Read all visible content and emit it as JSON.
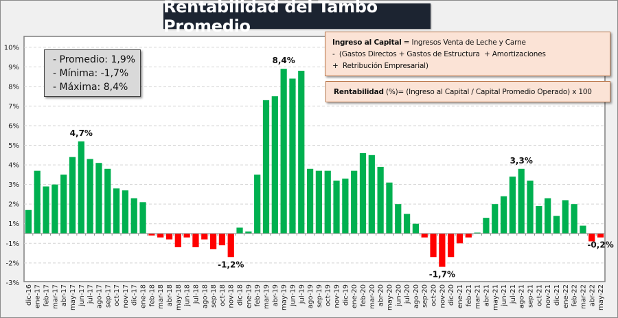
{
  "chart_data": {
    "type": "bar",
    "title": "Rentabilidad del Tambo Promedio",
    "xlabel": "",
    "ylabel": "",
    "ylim": [
      -3,
      10
    ],
    "grid": true,
    "y_tick_labels": [
      "10%",
      "9%",
      "8%",
      "7%",
      "6%",
      "5%",
      "4%",
      "3%",
      "2%",
      "1%",
      "-1%",
      "-2%",
      "-3%"
    ],
    "colors": {
      "positive": "#00b050",
      "negative": "#ff0000"
    },
    "categories": [
      "dic-16",
      "ene-17",
      "feb-17",
      "mar-17",
      "abr-17",
      "may-17",
      "jun-17",
      "jul-17",
      "ago-17",
      "sep-17",
      "oct-17",
      "nov-17",
      "dic-17",
      "ene-18",
      "feb-18",
      "mar-18",
      "abr-18",
      "may-18",
      "jun-18",
      "jul-18",
      "ago-18",
      "sep-18",
      "oct-18",
      "nov-18",
      "dic-18",
      "ene-19",
      "feb-19",
      "mar-19",
      "abr-19",
      "may-19",
      "jun-19",
      "jul-19",
      "ago-19",
      "sep-19",
      "oct-19",
      "nov-19",
      "dic-19",
      "ene-20",
      "feb-20",
      "mar-20",
      "abr-20",
      "may-20",
      "jun-20",
      "jul-20",
      "ago-20",
      "sep-20",
      "oct-20",
      "nov-20",
      "dic-20",
      "ene-21",
      "feb-21",
      "mar-21",
      "abr-21",
      "may-21",
      "jun-21",
      "jul-21",
      "ago-21",
      "sep-21",
      "oct-21",
      "nov-21",
      "dic-21",
      "ene-22",
      "feb-22",
      "mar-22",
      "abr-22",
      "may-22"
    ],
    "values": [
      1.2,
      3.2,
      2.4,
      2.5,
      3.0,
      3.9,
      4.7,
      3.8,
      3.6,
      3.3,
      2.3,
      2.2,
      1.8,
      1.6,
      -0.1,
      -0.2,
      -0.3,
      -0.7,
      -0.2,
      -0.7,
      -0.3,
      -0.8,
      -0.6,
      -1.2,
      0.3,
      0.1,
      3.0,
      6.8,
      7.0,
      8.4,
      7.9,
      8.3,
      3.3,
      3.2,
      3.2,
      2.7,
      2.8,
      3.2,
      4.1,
      4.0,
      3.4,
      2.6,
      1.5,
      1.0,
      0.5,
      -0.2,
      -1.2,
      -1.7,
      -1.2,
      -0.5,
      -0.2,
      0.05,
      0.8,
      1.5,
      1.9,
      2.9,
      3.3,
      2.7,
      1.4,
      1.8,
      0.9,
      1.7,
      1.5,
      0.4,
      -0.4,
      -0.2
    ],
    "data_labels": [
      {
        "category": "jun-17",
        "text": "4,7%"
      },
      {
        "category": "nov-18",
        "text": "-1,2%"
      },
      {
        "category": "may-19",
        "text": "8,4%"
      },
      {
        "category": "nov-20",
        "text": "-1,7%"
      },
      {
        "category": "ago-21",
        "text": "3,3%"
      },
      {
        "category": "may-22",
        "text": "-0,2%"
      }
    ]
  },
  "stats": {
    "lines": [
      "- Promedio: 1,9%",
      "- Mínima: -1,7%",
      "- Máxima: 8,4%"
    ]
  },
  "formulas": {
    "ingreso_bold": "Ingreso al Capital",
    "ingreso_rest": " = Ingresos Venta de Leche y Carne",
    "ingreso_line2": "-  (Gastos Directos + Gastos de Estructura  + Amortizaciones",
    "ingreso_line3": "+  Retribución Empresarial)",
    "rentabilidad_bold": "Rentabilidad",
    "rentabilidad_rest": " (%)= (Ingreso al Capital / Capital Promedio Operado) x 100"
  }
}
